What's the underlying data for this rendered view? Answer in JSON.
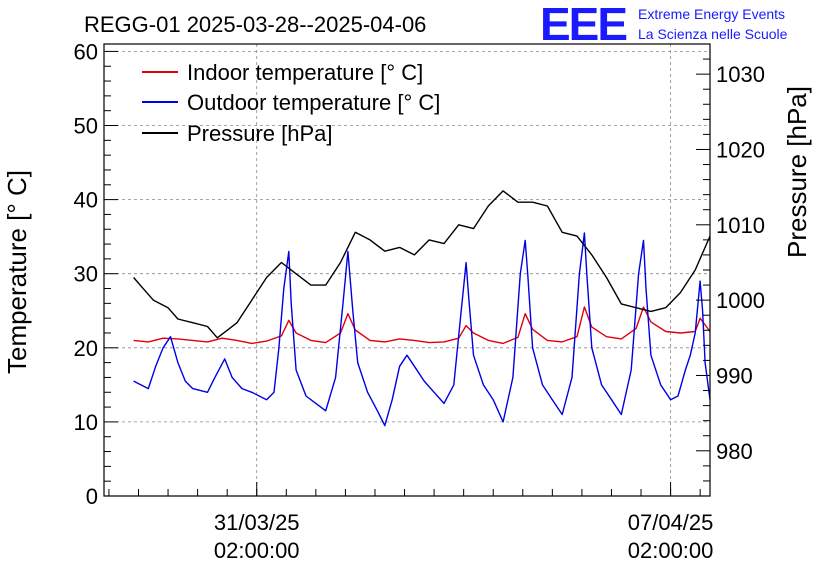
{
  "title": "REGG-01 2025-03-28--2025-04-06",
  "logo": {
    "mark": "EEE",
    "line1": "Extreme Energy Events",
    "line2": "La Scienza nelle Scuole"
  },
  "chart_data": {
    "type": "line",
    "title": "REGG-01 2025-03-28--2025-04-06",
    "xlabel": "",
    "ylabel": "Temperature [° C]",
    "y2label": "Pressure [hPa]",
    "xlim": [
      "2025-03-28T12:00",
      "2025-04-07T18:00"
    ],
    "ylim": [
      0,
      61
    ],
    "y2lim": [
      974,
      1034
    ],
    "y_ticks": [
      0,
      10,
      20,
      30,
      40,
      50,
      60
    ],
    "y2_ticks": [
      980,
      990,
      1000,
      1010,
      1020,
      1030
    ],
    "x_ticks": [
      {
        "t": "2025-03-31T02:00",
        "line1": "31/03/25",
        "line2": "02:00:00"
      },
      {
        "t": "2025-04-07T02:00",
        "line1": "07/04/25",
        "line2": "02:00:00"
      }
    ],
    "grid": true,
    "legend_position": "top-left",
    "series": [
      {
        "name": "Indoor temperature [° C]",
        "axis": "left",
        "color": "#e0000b",
        "points": [
          [
            "2025-03-29T00:00",
            21.0
          ],
          [
            "2025-03-29T06:00",
            20.8
          ],
          [
            "2025-03-29T12:00",
            21.3
          ],
          [
            "2025-03-29T18:00",
            21.2
          ],
          [
            "2025-03-30T00:00",
            21.0
          ],
          [
            "2025-03-30T06:00",
            20.8
          ],
          [
            "2025-03-30T12:00",
            21.3
          ],
          [
            "2025-03-30T18:00",
            21.0
          ],
          [
            "2025-03-31T00:00",
            20.6
          ],
          [
            "2025-03-31T06:00",
            20.9
          ],
          [
            "2025-03-31T12:00",
            21.6
          ],
          [
            "2025-03-31T15:00",
            23.7
          ],
          [
            "2025-03-31T18:00",
            22.0
          ],
          [
            "2025-04-01T00:00",
            21.0
          ],
          [
            "2025-04-01T06:00",
            20.7
          ],
          [
            "2025-04-01T12:00",
            22.0
          ],
          [
            "2025-04-01T15:00",
            24.6
          ],
          [
            "2025-04-01T18:00",
            22.4
          ],
          [
            "2025-04-02T00:00",
            21.0
          ],
          [
            "2025-04-02T06:00",
            20.8
          ],
          [
            "2025-04-02T12:00",
            21.2
          ],
          [
            "2025-04-02T18:00",
            21.0
          ],
          [
            "2025-04-03T00:00",
            20.7
          ],
          [
            "2025-04-03T06:00",
            20.8
          ],
          [
            "2025-04-03T12:00",
            21.3
          ],
          [
            "2025-04-03T15:00",
            23.0
          ],
          [
            "2025-04-03T18:00",
            22.0
          ],
          [
            "2025-04-04T00:00",
            21.0
          ],
          [
            "2025-04-04T06:00",
            20.6
          ],
          [
            "2025-04-04T12:00",
            21.4
          ],
          [
            "2025-04-04T15:00",
            24.6
          ],
          [
            "2025-04-04T18:00",
            22.5
          ],
          [
            "2025-04-05T00:00",
            21.0
          ],
          [
            "2025-04-05T06:00",
            20.8
          ],
          [
            "2025-04-05T12:00",
            21.5
          ],
          [
            "2025-04-05T15:00",
            25.5
          ],
          [
            "2025-04-05T18:00",
            22.8
          ],
          [
            "2025-04-06T00:00",
            21.5
          ],
          [
            "2025-04-06T06:00",
            21.2
          ],
          [
            "2025-04-06T12:00",
            22.6
          ],
          [
            "2025-04-06T15:00",
            25.5
          ],
          [
            "2025-04-06T18:00",
            23.5
          ],
          [
            "2025-04-07T00:00",
            22.2
          ],
          [
            "2025-04-07T06:00",
            22.0
          ],
          [
            "2025-04-07T12:00",
            22.2
          ],
          [
            "2025-04-07T14:00",
            24.0
          ],
          [
            "2025-04-07T18:00",
            22.2
          ]
        ]
      },
      {
        "name": "Outdoor temperature [° C]",
        "axis": "left",
        "color": "#0000e6",
        "points": [
          [
            "2025-03-29T00:00",
            15.5
          ],
          [
            "2025-03-29T03:00",
            15.0
          ],
          [
            "2025-03-29T06:00",
            14.5
          ],
          [
            "2025-03-29T09:00",
            17.5
          ],
          [
            "2025-03-29T12:00",
            20.0
          ],
          [
            "2025-03-29T15:00",
            21.5
          ],
          [
            "2025-03-29T18:00",
            18.0
          ],
          [
            "2025-03-29T21:00",
            15.5
          ],
          [
            "2025-03-30T00:00",
            14.5
          ],
          [
            "2025-03-30T06:00",
            14.0
          ],
          [
            "2025-03-30T09:00",
            16.0
          ],
          [
            "2025-03-30T13:00",
            18.5
          ],
          [
            "2025-03-30T16:00",
            16.0
          ],
          [
            "2025-03-30T20:00",
            14.5
          ],
          [
            "2025-03-31T00:00",
            14.0
          ],
          [
            "2025-03-31T06:00",
            13.0
          ],
          [
            "2025-03-31T09:00",
            14.0
          ],
          [
            "2025-03-31T11:00",
            20.0
          ],
          [
            "2025-03-31T13:00",
            28.0
          ],
          [
            "2025-03-31T15:00",
            33.0
          ],
          [
            "2025-03-31T16:00",
            26.0
          ],
          [
            "2025-03-31T18:00",
            17.0
          ],
          [
            "2025-03-31T22:00",
            13.5
          ],
          [
            "2025-04-01T02:00",
            12.5
          ],
          [
            "2025-04-01T06:00",
            11.5
          ],
          [
            "2025-04-01T10:00",
            16.0
          ],
          [
            "2025-04-01T13:00",
            26.0
          ],
          [
            "2025-04-01T15:00",
            33.0
          ],
          [
            "2025-04-01T17:00",
            25.0
          ],
          [
            "2025-04-01T19:00",
            18.0
          ],
          [
            "2025-04-01T23:00",
            14.0
          ],
          [
            "2025-04-02T03:00",
            11.5
          ],
          [
            "2025-04-02T06:00",
            9.5
          ],
          [
            "2025-04-02T09:00",
            13.0
          ],
          [
            "2025-04-02T12:00",
            17.5
          ],
          [
            "2025-04-02T15:00",
            19.0
          ],
          [
            "2025-04-02T18:00",
            17.5
          ],
          [
            "2025-04-02T22:00",
            15.5
          ],
          [
            "2025-04-03T02:00",
            14.0
          ],
          [
            "2025-04-03T06:00",
            12.5
          ],
          [
            "2025-04-03T10:00",
            15.0
          ],
          [
            "2025-04-03T13:00",
            25.0
          ],
          [
            "2025-04-03T15:00",
            31.5
          ],
          [
            "2025-04-03T16:00",
            27.0
          ],
          [
            "2025-04-03T18:00",
            19.0
          ],
          [
            "2025-04-03T22:00",
            15.0
          ],
          [
            "2025-04-04T02:00",
            13.0
          ],
          [
            "2025-04-04T06:00",
            10.0
          ],
          [
            "2025-04-04T10:00",
            16.0
          ],
          [
            "2025-04-04T13:00",
            30.0
          ],
          [
            "2025-04-04T15:00",
            34.5
          ],
          [
            "2025-04-04T16:00",
            30.0
          ],
          [
            "2025-04-04T18:00",
            20.0
          ],
          [
            "2025-04-04T22:00",
            15.0
          ],
          [
            "2025-04-05T02:00",
            13.0
          ],
          [
            "2025-04-05T06:00",
            11.0
          ],
          [
            "2025-04-05T10:00",
            16.0
          ],
          [
            "2025-04-05T13:00",
            30.0
          ],
          [
            "2025-04-05T15:00",
            35.5
          ],
          [
            "2025-04-05T16:00",
            30.0
          ],
          [
            "2025-04-05T18:00",
            20.0
          ],
          [
            "2025-04-05T22:00",
            15.0
          ],
          [
            "2025-04-06T02:00",
            13.0
          ],
          [
            "2025-04-06T06:00",
            11.0
          ],
          [
            "2025-04-06T10:00",
            17.0
          ],
          [
            "2025-04-06T13:00",
            30.0
          ],
          [
            "2025-04-06T15:00",
            34.5
          ],
          [
            "2025-04-06T16:00",
            28.0
          ],
          [
            "2025-04-06T18:00",
            19.0
          ],
          [
            "2025-04-06T22:00",
            15.0
          ],
          [
            "2025-04-07T02:00",
            13.0
          ],
          [
            "2025-04-07T05:00",
            13.5
          ],
          [
            "2025-04-07T08:00",
            17.0
          ],
          [
            "2025-04-07T10:00",
            19.0
          ],
          [
            "2025-04-07T12:00",
            22.0
          ],
          [
            "2025-04-07T14:00",
            29.0
          ],
          [
            "2025-04-07T15:00",
            25.0
          ],
          [
            "2025-04-07T16:00",
            18.0
          ],
          [
            "2025-04-07T18:00",
            13.0
          ]
        ]
      },
      {
        "name": "Pressure [hPa]",
        "axis": "right",
        "color": "#000000",
        "points": [
          [
            "2025-03-29T00:00",
            1003.0
          ],
          [
            "2025-03-29T04:00",
            1001.5
          ],
          [
            "2025-03-29T08:00",
            1000.0
          ],
          [
            "2025-03-29T14:00",
            999.0
          ],
          [
            "2025-03-29T18:00",
            997.5
          ],
          [
            "2025-03-30T00:00",
            997.0
          ],
          [
            "2025-03-30T06:00",
            996.5
          ],
          [
            "2025-03-30T10:00",
            995.0
          ],
          [
            "2025-03-30T14:00",
            996.0
          ],
          [
            "2025-03-30T18:00",
            997.0
          ],
          [
            "2025-03-31T00:00",
            1000.0
          ],
          [
            "2025-03-31T06:00",
            1003.0
          ],
          [
            "2025-03-31T12:00",
            1005.0
          ],
          [
            "2025-03-31T18:00",
            1003.5
          ],
          [
            "2025-04-01T00:00",
            1002.0
          ],
          [
            "2025-04-01T06:00",
            1002.0
          ],
          [
            "2025-04-01T12:00",
            1005.0
          ],
          [
            "2025-04-01T18:00",
            1009.0
          ],
          [
            "2025-04-02T00:00",
            1008.0
          ],
          [
            "2025-04-02T06:00",
            1006.5
          ],
          [
            "2025-04-02T12:00",
            1007.0
          ],
          [
            "2025-04-02T18:00",
            1006.0
          ],
          [
            "2025-04-03T00:00",
            1008.0
          ],
          [
            "2025-04-03T06:00",
            1007.5
          ],
          [
            "2025-04-03T12:00",
            1010.0
          ],
          [
            "2025-04-03T18:00",
            1009.5
          ],
          [
            "2025-04-04T00:00",
            1012.5
          ],
          [
            "2025-04-04T06:00",
            1014.5
          ],
          [
            "2025-04-04T12:00",
            1013.0
          ],
          [
            "2025-04-04T18:00",
            1013.0
          ],
          [
            "2025-04-05T00:00",
            1012.5
          ],
          [
            "2025-04-05T06:00",
            1009.0
          ],
          [
            "2025-04-05T12:00",
            1008.5
          ],
          [
            "2025-04-05T18:00",
            1006.0
          ],
          [
            "2025-04-06T00:00",
            1003.0
          ],
          [
            "2025-04-06T06:00",
            999.5
          ],
          [
            "2025-04-06T12:00",
            999.0
          ],
          [
            "2025-04-06T18:00",
            998.5
          ],
          [
            "2025-04-07T00:00",
            999.0
          ],
          [
            "2025-04-07T06:00",
            1001.0
          ],
          [
            "2025-04-07T12:00",
            1004.0
          ],
          [
            "2025-04-07T18:00",
            1008.5
          ]
        ]
      }
    ]
  }
}
